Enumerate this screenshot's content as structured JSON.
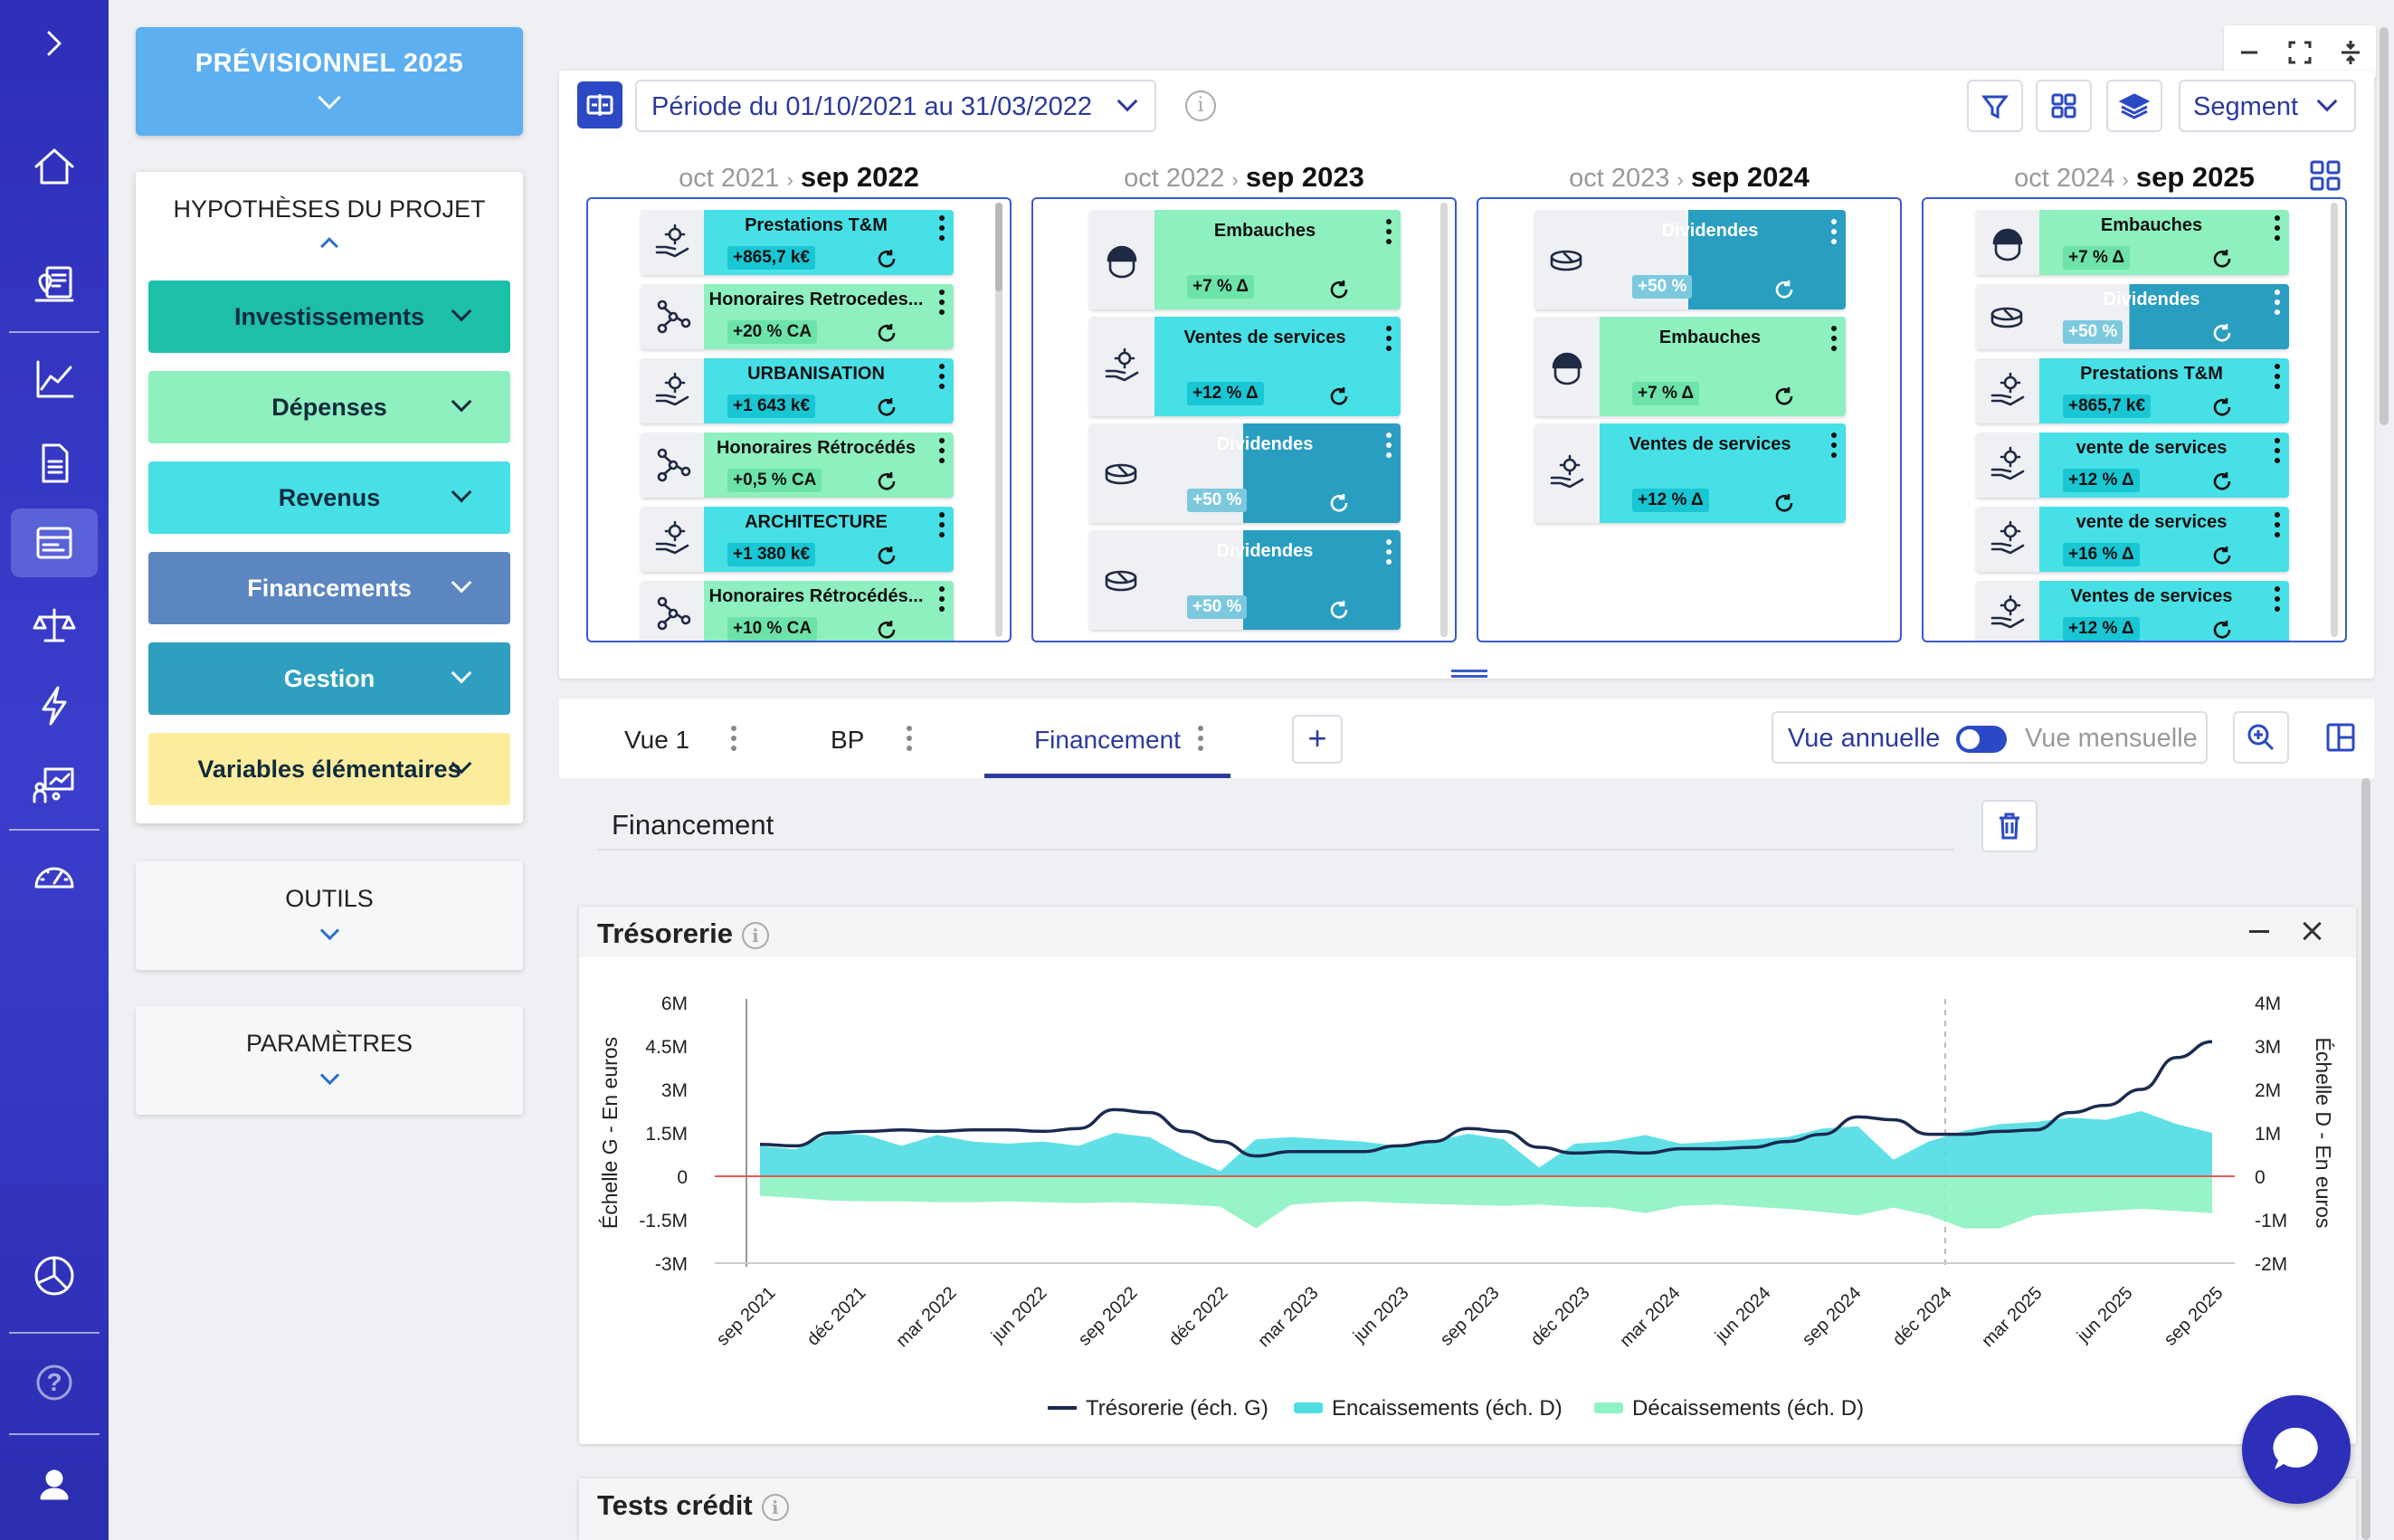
{
  "rail": {
    "top_icon": "chevron-right-icon",
    "items": [
      "home-icon",
      "map-report-icon",
      "line-chart-icon",
      "document-icon",
      "card-icon",
      "balance-icon",
      "lightning-icon",
      "team-chart-icon",
      "gauge-icon"
    ],
    "bottom": [
      "pie-chart-icon",
      "help-icon",
      "user-icon"
    ],
    "active": "card-icon",
    "help_label": "?"
  },
  "panel": {
    "main_title": "PRÉVISIONNEL 2025",
    "hyp_title": "HYPOTHÈSES DU PROJET",
    "hyp_buttons": [
      {
        "label": "Investissements",
        "bg": "#1dbfa9",
        "fg": "#0f2b3d"
      },
      {
        "label": "Dépenses",
        "bg": "#8eefbf",
        "fg": "#0f2b3d"
      },
      {
        "label": "Revenus",
        "bg": "#47e0e6",
        "fg": "#0f2b3d"
      },
      {
        "label": "Financements",
        "bg": "#5b86c0",
        "fg": "#ffffff"
      },
      {
        "label": "Gestion",
        "bg": "#2e9fbf",
        "fg": "#ffffff"
      },
      {
        "label": "Variables élémentaires",
        "bg": "#fcec9e",
        "fg": "#0f2b3d"
      }
    ],
    "outils": "OUTILS",
    "parametres": "PARAMÈTRES"
  },
  "toolbar": {
    "period": "Période du 01/10/2021 au 31/03/2022",
    "segment": "Segment",
    "info": "i"
  },
  "timeline": {
    "years": [
      {
        "from": "oct 2021",
        "to": "sep 2022",
        "cards": [
          {
            "label": "Prestations T&M",
            "value": "+865,7 k€",
            "type": "rev",
            "icon": "hand-gear-icon"
          },
          {
            "label": "Honoraires Retrocedes...",
            "value": "+20 % CA",
            "type": "dep",
            "icon": "network-icon"
          },
          {
            "label": "URBANISATION",
            "value": "+1 643 k€",
            "type": "rev",
            "icon": "hand-gear-icon"
          },
          {
            "label": "Honoraires Rétrocédés",
            "value": "+0,5 % CA",
            "type": "dep",
            "icon": "network-icon"
          },
          {
            "label": "ARCHITECTURE",
            "value": "+1 380 k€",
            "type": "rev",
            "icon": "hand-gear-icon"
          },
          {
            "label": "Honoraires Rétrocédés...",
            "value": "+10 % CA",
            "type": "dep",
            "icon": "network-icon"
          }
        ]
      },
      {
        "from": "oct 2022",
        "to": "sep 2023",
        "cards": [
          {
            "label": "Embauches",
            "value": "+7 % Δ",
            "type": "dep",
            "icon": "helmet-icon"
          },
          {
            "label": "Ventes de services",
            "value": "+12 % Δ",
            "type": "rev",
            "icon": "hand-gear-icon"
          },
          {
            "label": "Dividendes",
            "value": "+50 %",
            "type": "div",
            "icon": "coins-icon"
          },
          {
            "label": "Dividendes",
            "value": "+50 %",
            "type": "div",
            "icon": "coins-icon"
          }
        ]
      },
      {
        "from": "oct 2023",
        "to": "sep 2024",
        "cards": [
          {
            "label": "Dividendes",
            "value": "+50 %",
            "type": "div",
            "icon": "coins-icon"
          },
          {
            "label": "Embauches",
            "value": "+7 % Δ",
            "type": "dep",
            "icon": "helmet-icon"
          },
          {
            "label": "Ventes de services",
            "value": "+12 % Δ",
            "type": "rev",
            "icon": "hand-gear-icon"
          }
        ]
      },
      {
        "from": "oct 2024",
        "to": "sep 2025",
        "cards": [
          {
            "label": "Embauches",
            "value": "+7 % Δ",
            "type": "dep",
            "icon": "helmet-icon"
          },
          {
            "label": "Dividendes",
            "value": "+50 %",
            "type": "div",
            "icon": "coins-icon"
          },
          {
            "label": "Prestations T&M",
            "value": "+865,7 k€",
            "type": "rev",
            "icon": "hand-gear-icon"
          },
          {
            "label": "vente de services",
            "value": "+12 % Δ",
            "type": "rev",
            "icon": "hand-gear-icon"
          },
          {
            "label": "vente de services",
            "value": "+16 % Δ",
            "type": "rev",
            "icon": "hand-gear-icon"
          },
          {
            "label": "Ventes de services",
            "value": "+12 % Δ",
            "type": "rev",
            "icon": "hand-gear-icon"
          }
        ]
      }
    ],
    "arrow": "›"
  },
  "tabs": {
    "items": [
      "Vue 1",
      "BP",
      "Financement"
    ],
    "active": "Financement",
    "add": "+",
    "view_annual": "Vue annuelle",
    "view_monthly": "Vue mensuelle"
  },
  "section": {
    "title": "Financement"
  },
  "tresorerie": {
    "title": "Trésorerie",
    "info": "i"
  },
  "tests": {
    "title": "Tests crédit",
    "info": "i"
  },
  "colors": {
    "line": "#1a2a4f",
    "enc": "#4fdde3",
    "dec": "#8ef2c2",
    "zero": "#e05a5a"
  },
  "chart_data": {
    "type": "line",
    "x_labels": [
      "sep 2021",
      "déc 2021",
      "mar 2022",
      "jun 2022",
      "sep 2022",
      "déc 2022",
      "mar 2023",
      "jun 2023",
      "sep 2023",
      "déc 2023",
      "mar 2024",
      "jun 2024",
      "sep 2024",
      "déc 2024",
      "mar 2025",
      "jun 2025",
      "sep 2025"
    ],
    "left_ylabel": "Échelle G - En euros",
    "right_ylabel": "Échelle D - En euros",
    "left_ticks": [
      "6M",
      "4.5M",
      "3M",
      "1.5M",
      "0",
      "-1.5M",
      "-3M"
    ],
    "right_ticks": [
      "4M",
      "3M",
      "2M",
      "1M",
      "0",
      "-1M",
      "-2M"
    ],
    "left_ylim": [
      -3000000,
      6000000
    ],
    "right_ylim": [
      -2000000,
      4000000
    ],
    "series": [
      {
        "name": "Trésorerie (éch. G)",
        "axis": "left",
        "values": [
          1100000,
          1050000,
          1500000,
          1550000,
          1600000,
          1550000,
          1600000,
          1600000,
          1550000,
          1650000,
          2300000,
          2200000,
          1550000,
          1200000,
          700000,
          850000,
          850000,
          850000,
          1050000,
          1200000,
          1650000,
          1550000,
          1000000,
          800000,
          850000,
          800000,
          950000,
          950000,
          1000000,
          1200000,
          1450000,
          2050000,
          1950000,
          1450000,
          1450000,
          1550000,
          1600000,
          2200000,
          2450000,
          3000000,
          4100000,
          4650000
        ]
      },
      {
        "name": "Encaissements (éch. D)",
        "axis": "right",
        "values": [
          700000,
          620000,
          1000000,
          950000,
          700000,
          950000,
          800000,
          750000,
          800000,
          700000,
          1000000,
          900000,
          450000,
          120000,
          850000,
          900000,
          850000,
          800000,
          700000,
          800000,
          980000,
          850000,
          200000,
          750000,
          800000,
          950000,
          750000,
          800000,
          850000,
          900000,
          1100000,
          1150000,
          380000,
          800000,
          1050000,
          1200000,
          1250000,
          1350000,
          1300000,
          1500000,
          1200000,
          1000000
        ]
      },
      {
        "name": "Décaissements (éch. D)",
        "axis": "right",
        "values": [
          -450000,
          -500000,
          -560000,
          -580000,
          -580000,
          -600000,
          -600000,
          -580000,
          -600000,
          -620000,
          -600000,
          -620000,
          -650000,
          -700000,
          -1200000,
          -650000,
          -600000,
          -580000,
          -620000,
          -640000,
          -660000,
          -680000,
          -650000,
          -700000,
          -720000,
          -850000,
          -680000,
          -650000,
          -700000,
          -750000,
          -820000,
          -900000,
          -720000,
          -900000,
          -1200000,
          -1200000,
          -900000,
          -850000,
          -800000,
          -750000,
          -800000,
          -850000
        ]
      }
    ],
    "legend_placement": "bottom",
    "grid": false
  }
}
